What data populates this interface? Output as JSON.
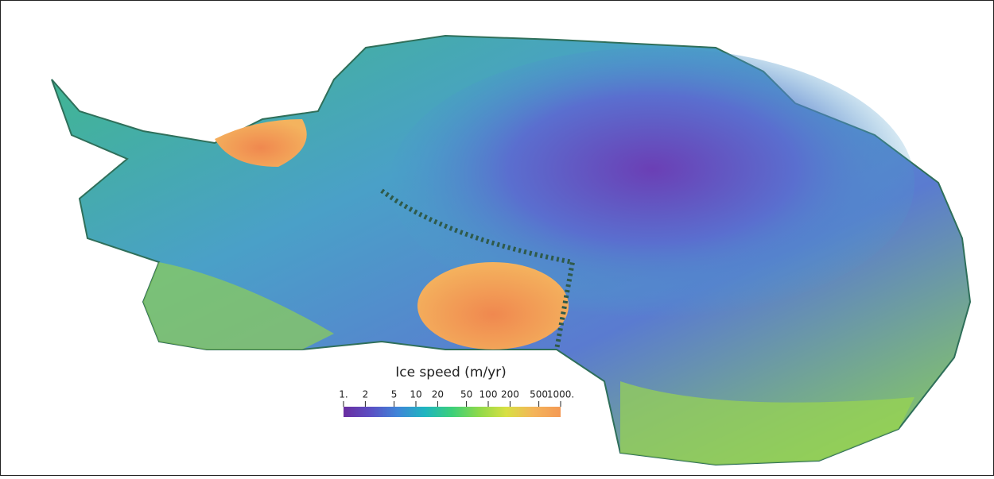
{
  "colorbar": {
    "title": "Ice speed (m/yr)",
    "log_scale": true,
    "lim": [
      1,
      1000
    ],
    "ticks": [
      {
        "value": 1,
        "label": "1."
      },
      2,
      5,
      10,
      20,
      50,
      100,
      200,
      500,
      {
        "value": 1000,
        "label": "1000."
      }
    ],
    "colors": [
      "#6a2ea0",
      "#5b4fc4",
      "#3f86d8",
      "#1fb5c0",
      "#3ccf7a",
      "#8fd94a",
      "#d8e043",
      "#f4b45a",
      "#f49a55"
    ]
  }
}
